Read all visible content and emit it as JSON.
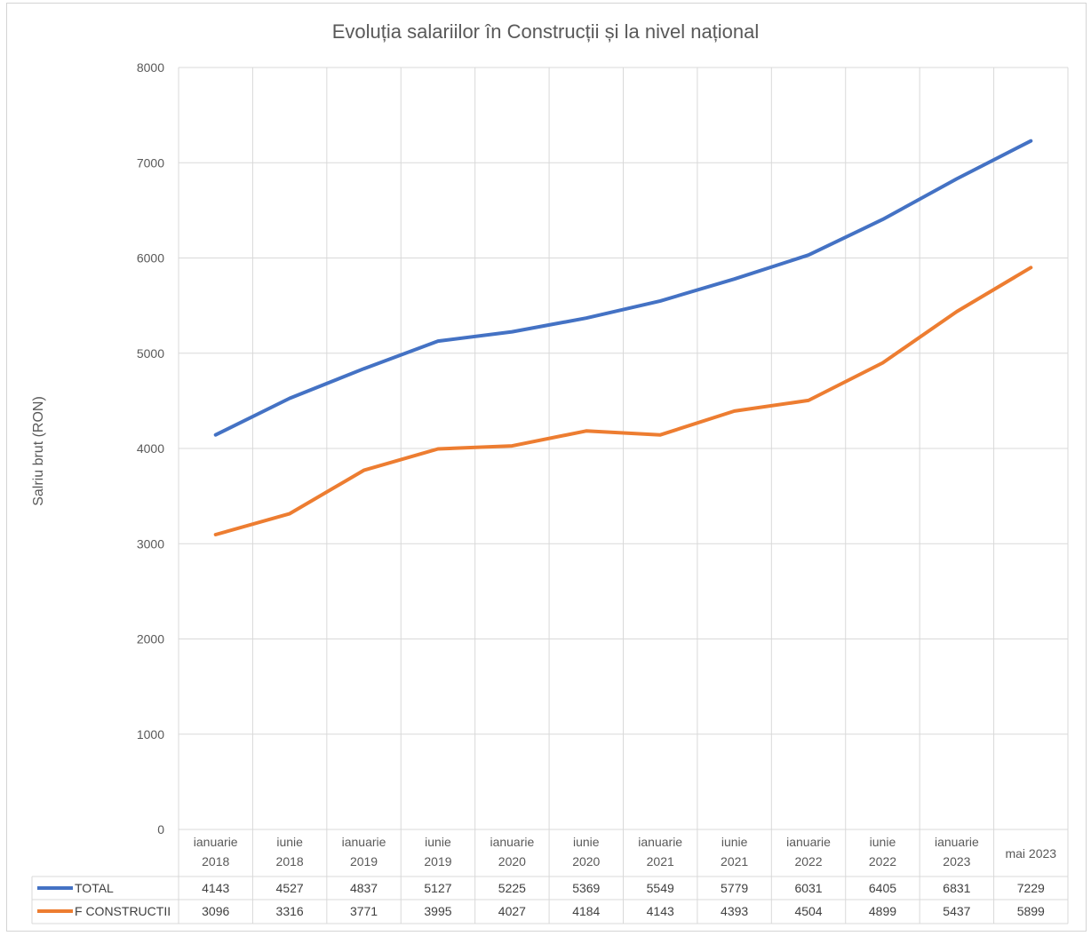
{
  "chart_data": {
    "type": "line",
    "title": "Evoluția salariilor în Construcții și la nivel național",
    "xlabel": "",
    "ylabel": "Salriu brut (RON)",
    "ylim": [
      0,
      8000
    ],
    "yticks": [
      0,
      1000,
      2000,
      3000,
      4000,
      5000,
      6000,
      7000,
      8000
    ],
    "grid": true,
    "legend": "data-table",
    "categories": [
      [
        "ianuarie",
        "2018"
      ],
      [
        "iunie",
        "2018"
      ],
      [
        "ianuarie",
        "2019"
      ],
      [
        "iunie",
        "2019"
      ],
      [
        "ianuarie",
        "2020"
      ],
      [
        "iunie",
        "2020"
      ],
      [
        "ianuarie",
        "2021"
      ],
      [
        "iunie",
        "2021"
      ],
      [
        "ianuarie",
        "2022"
      ],
      [
        "iunie",
        "2022"
      ],
      [
        "ianuarie",
        "2023"
      ],
      [
        "mai 2023"
      ]
    ],
    "series": [
      {
        "name": "TOTAL",
        "color": "#4472C4",
        "values": [
          4143,
          4527,
          4837,
          5127,
          5225,
          5369,
          5549,
          5779,
          6031,
          6405,
          6831,
          7229
        ]
      },
      {
        "name": "F CONSTRUCTII",
        "color": "#ED7D31",
        "values": [
          3096,
          3316,
          3771,
          3995,
          4027,
          4184,
          4143,
          4393,
          4504,
          4899,
          5437,
          5899
        ]
      }
    ]
  }
}
